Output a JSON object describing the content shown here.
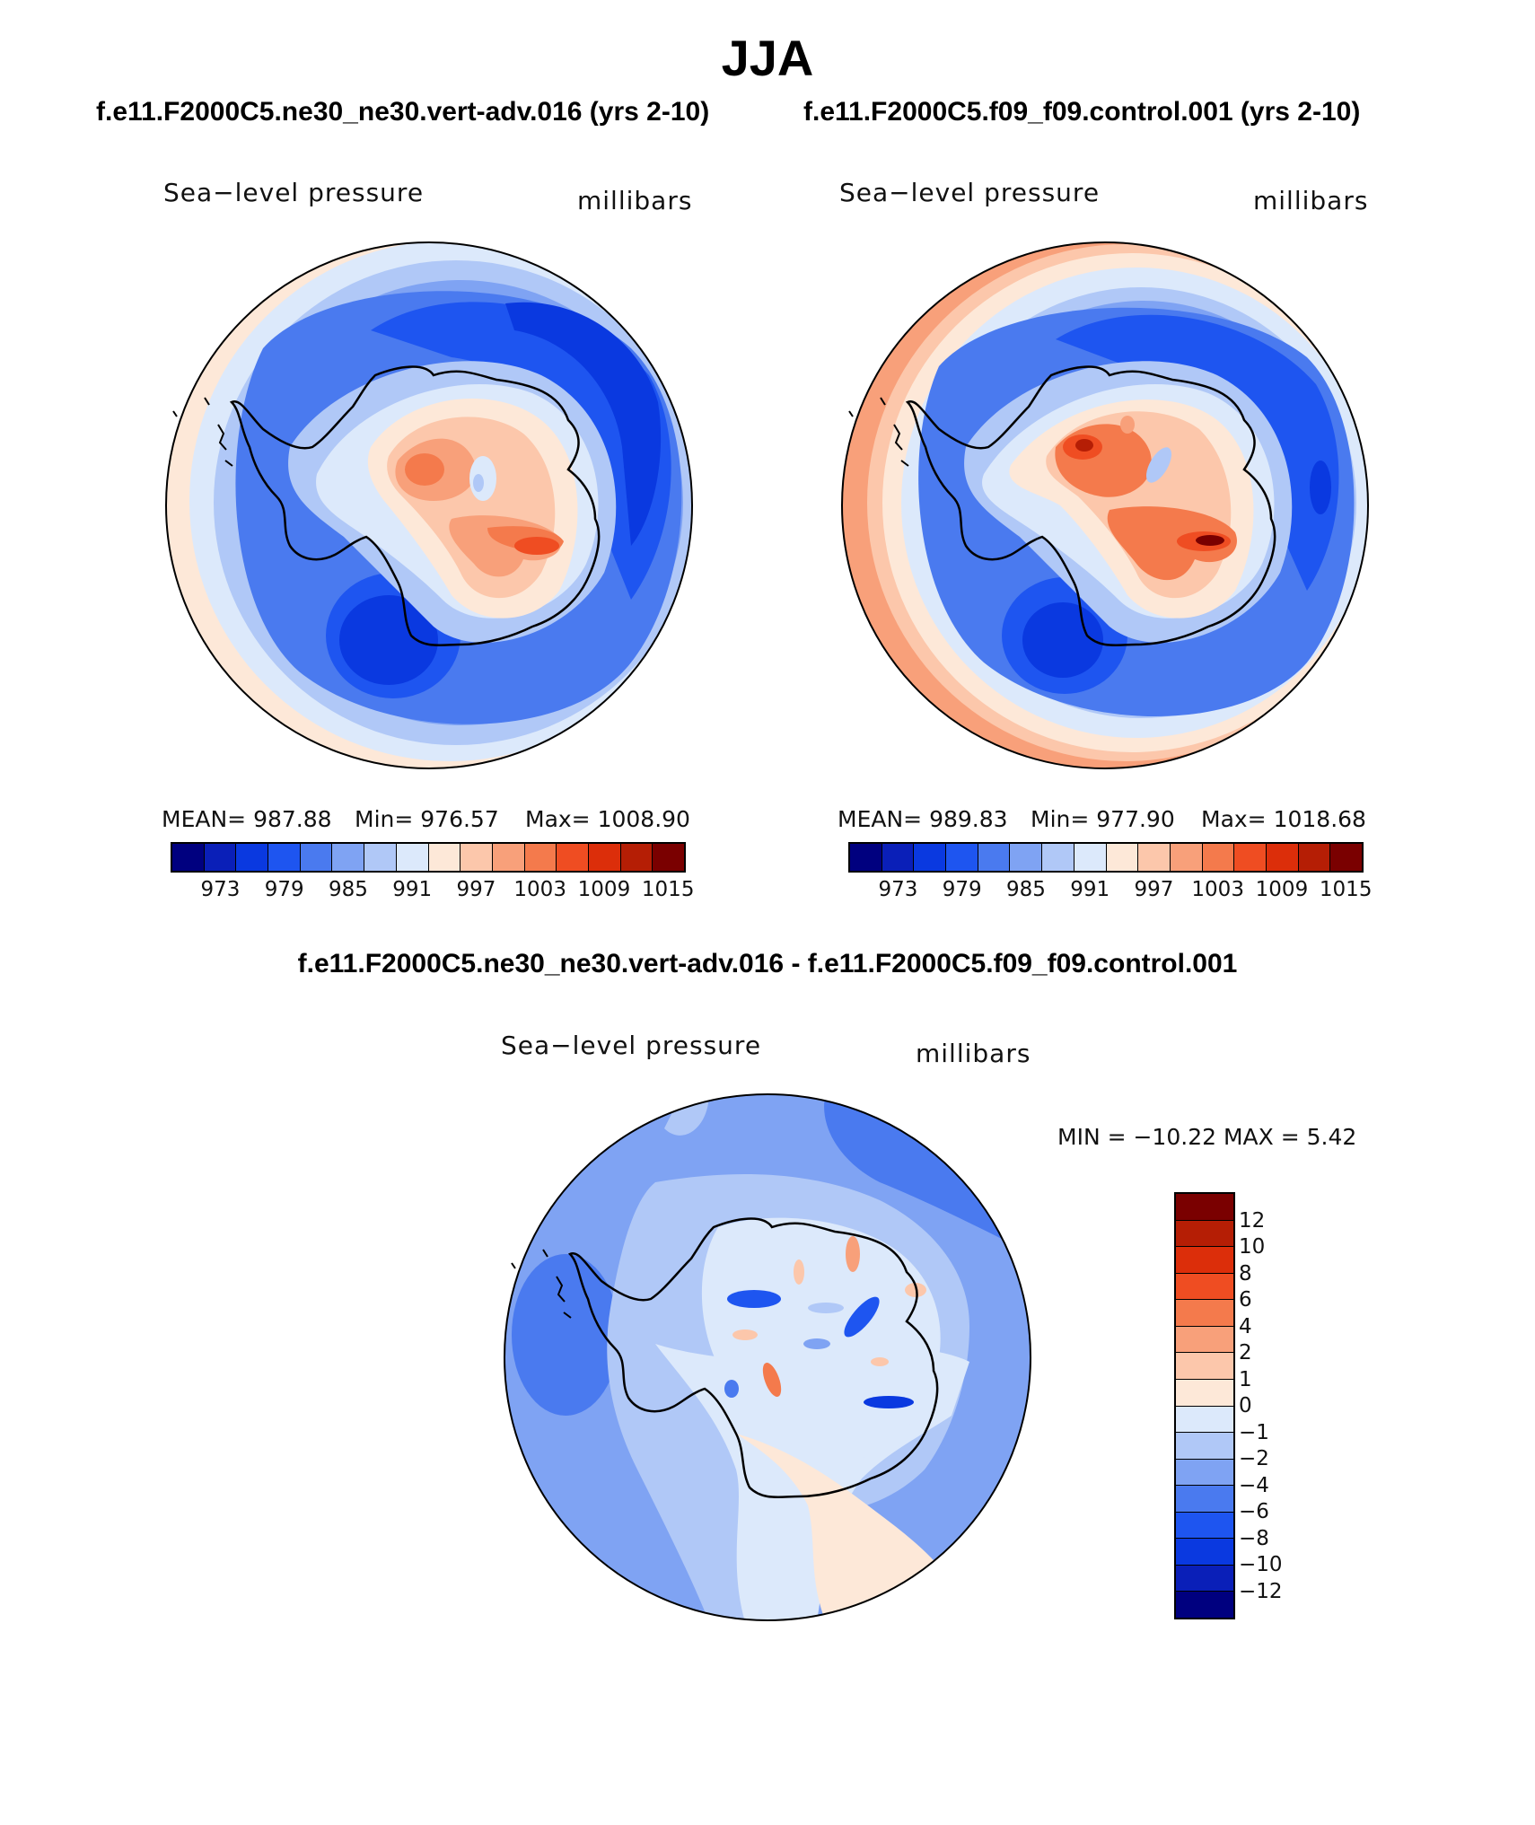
{
  "figure": {
    "season_title": "JJA"
  },
  "panels": [
    {
      "case_title": "f.e11.F2000C5.ne30_ne30.vert-adv.016 (yrs 2-10)",
      "variable_label": "Sea−level pressure",
      "units_label": "millibars",
      "stats": {
        "mean": "MEAN=  987.88",
        "min": "Min=  976.57",
        "max": "Max=  1008.90"
      },
      "colorbar": {
        "colors": [
          "#00007f",
          "#0a1fb8",
          "#0a39e0",
          "#1e55f0",
          "#4a7aef",
          "#7fa3f3",
          "#b0c8f7",
          "#dce9fb",
          "#fde8d8",
          "#fcc7ab",
          "#f8a07a",
          "#f47a4c",
          "#ef4d22",
          "#dc2e0a",
          "#b51e05",
          "#7a0000"
        ],
        "ticks": [
          "973",
          "979",
          "985",
          "991",
          "997",
          "1003",
          "1009",
          "1015"
        ]
      }
    },
    {
      "case_title": "f.e11.F2000C5.f09_f09.control.001 (yrs 2-10)",
      "variable_label": "Sea−level pressure",
      "units_label": "millibars",
      "stats": {
        "mean": "MEAN=  989.83",
        "min": "Min=  977.90",
        "max": "Max=  1018.68"
      },
      "colorbar": {
        "colors": [
          "#00007f",
          "#0a1fb8",
          "#0a39e0",
          "#1e55f0",
          "#4a7aef",
          "#7fa3f3",
          "#b0c8f7",
          "#dce9fb",
          "#fde8d8",
          "#fcc7ab",
          "#f8a07a",
          "#f47a4c",
          "#ef4d22",
          "#dc2e0a",
          "#b51e05",
          "#7a0000"
        ],
        "ticks": [
          "973",
          "979",
          "985",
          "991",
          "997",
          "1003",
          "1009",
          "1015"
        ]
      }
    }
  ],
  "difference": {
    "title": "f.e11.F2000C5.ne30_ne30.vert-adv.016 - f.e11.F2000C5.f09_f09.control.001",
    "variable_label": "Sea−level pressure",
    "units_label": "millibars",
    "minmax": "MIN = −10.22 MAX =    5.42",
    "colorbar": {
      "colors_top_to_bottom": [
        "#7a0000",
        "#b51e05",
        "#dc2e0a",
        "#ef4d22",
        "#f47a4c",
        "#f8a07a",
        "#fcc7ab",
        "#fde8d8",
        "#dce9fb",
        "#b0c8f7",
        "#7fa3f3",
        "#4a7aef",
        "#1e55f0",
        "#0a39e0",
        "#0a1fb8",
        "#00007f"
      ],
      "ticks": [
        "12",
        "10",
        "8",
        "6",
        "4",
        "2",
        "1",
        "0",
        "−1",
        "−2",
        "−4",
        "−6",
        "−8",
        "−10",
        "−12"
      ]
    }
  },
  "colors": {
    "deep_blue": "#0a39e0",
    "mid_blue": "#4a7aef",
    "light_blue": "#7fa3f3",
    "pale_blue": "#b0c8f7",
    "near_white_blue": "#dce9fb",
    "cream": "#fde8d8",
    "peach": "#fcc7ab",
    "orange": "#f47a4c",
    "red": "#ef4d22",
    "dark_red": "#b51e05"
  }
}
